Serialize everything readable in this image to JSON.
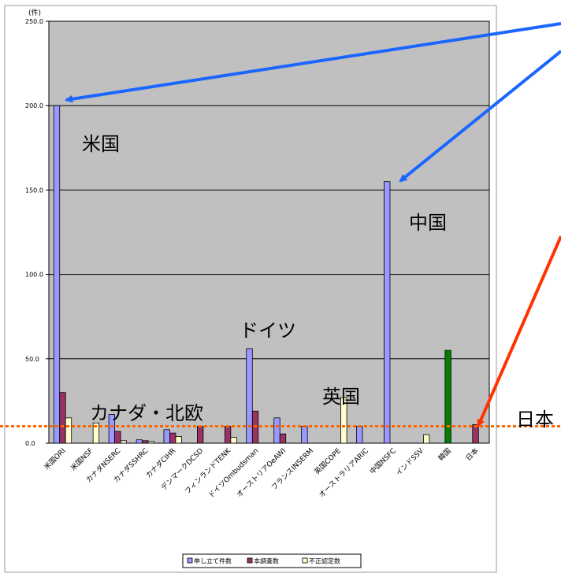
{
  "chart_data": {
    "type": "bar",
    "unit_label": "(件)",
    "ylim": [
      0,
      250
    ],
    "yticks": [
      "0.0",
      "50.0",
      "100.0",
      "150.0",
      "200.0",
      "250.0"
    ],
    "grid": true,
    "legend_position": "bottom",
    "categories": [
      "米国ORI",
      "米国NSF",
      "カナダNSERC",
      "カナダSSHRC",
      "カナダCIHR",
      "デンマークDCSD",
      "フィンランドTENK",
      "ドイツOmbudsman",
      "オーストリアOeAWI",
      "フランスINSERM",
      "英国COPE",
      "オーストラリアARIC",
      "中国NSFC",
      "インドSSV",
      "韓国",
      "日本"
    ],
    "series": [
      {
        "name": "申し立て件数",
        "color": "#9999ff",
        "values": [
          200,
          null,
          17,
          2,
          8,
          null,
          null,
          56,
          15,
          10,
          null,
          10,
          155,
          null,
          null,
          null
        ]
      },
      {
        "name": "本調査数",
        "color": "#993366",
        "values": [
          30,
          null,
          7,
          1.5,
          6,
          10,
          10,
          19,
          5.5,
          null,
          null,
          null,
          null,
          null,
          null,
          11
        ]
      },
      {
        "name": "不正認定数",
        "color": "#ffffcc",
        "values": [
          15,
          12,
          1.5,
          1,
          4,
          null,
          3.5,
          null,
          null,
          null,
          27,
          null,
          null,
          5,
          null,
          null
        ]
      }
    ],
    "special_bars": [
      {
        "category": "韓国",
        "value": 55,
        "color": "#008000"
      }
    ],
    "annotations": {
      "us": "米国",
      "china": "中国",
      "germany": "ドイツ",
      "uk": "英国",
      "canada_nordic": "カナダ・北欧",
      "japan": "日本"
    },
    "reference_line": {
      "value": 10,
      "color": "#ff6600"
    }
  }
}
